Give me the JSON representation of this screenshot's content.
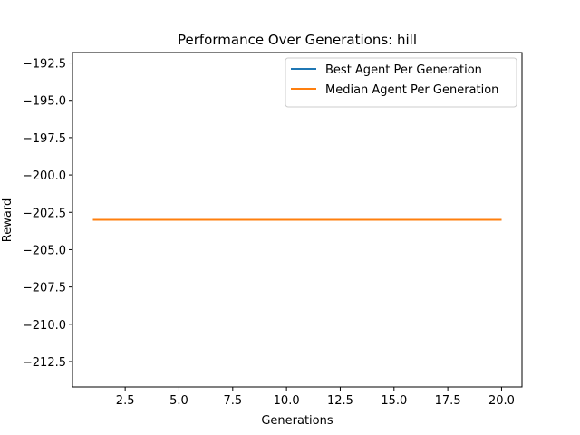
{
  "chart_data": {
    "type": "line",
    "title": "Performance Over Generations: hill",
    "xlabel": "Generations",
    "ylabel": "Reward",
    "xlim": [
      0.05,
      20.95
    ],
    "ylim": [
      -214.2,
      -191.8
    ],
    "xticks": [
      2.5,
      5.0,
      7.5,
      10.0,
      12.5,
      15.0,
      17.5,
      20.0
    ],
    "xtick_labels": [
      "2.5",
      "5.0",
      "7.5",
      "10.0",
      "12.5",
      "15.0",
      "17.5",
      "20.0"
    ],
    "yticks": [
      -192.5,
      -195.0,
      -197.5,
      -200.0,
      -202.5,
      -205.0,
      -207.5,
      -210.0,
      -212.5
    ],
    "ytick_labels": [
      "−192.5",
      "−195.0",
      "−197.5",
      "−200.0",
      "−202.5",
      "−205.0",
      "−207.5",
      "−210.0",
      "−212.5"
    ],
    "grid": false,
    "legend_position": "top-right",
    "series": [
      {
        "name": "Best Agent Per Generation",
        "color": "#1f77b4",
        "x": [
          1,
          2,
          3,
          4,
          5,
          6,
          7,
          8,
          9,
          10,
          11,
          12,
          13,
          14,
          15,
          16,
          17,
          18,
          19,
          20
        ],
        "y": [
          -203,
          -203,
          -203,
          -203,
          -203,
          -203,
          -203,
          -203,
          -203,
          -203,
          -203,
          -203,
          -203,
          -203,
          -203,
          -203,
          -203,
          -203,
          -203,
          -203
        ]
      },
      {
        "name": "Median Agent Per Generation",
        "color": "#ff7f0e",
        "x": [
          1,
          2,
          3,
          4,
          5,
          6,
          7,
          8,
          9,
          10,
          11,
          12,
          13,
          14,
          15,
          16,
          17,
          18,
          19,
          20
        ],
        "y": [
          -203,
          -203,
          -203,
          -203,
          -203,
          -203,
          -203,
          -203,
          -203,
          -203,
          -203,
          -203,
          -203,
          -203,
          -203,
          -203,
          -203,
          -203,
          -203,
          -203
        ]
      }
    ]
  }
}
